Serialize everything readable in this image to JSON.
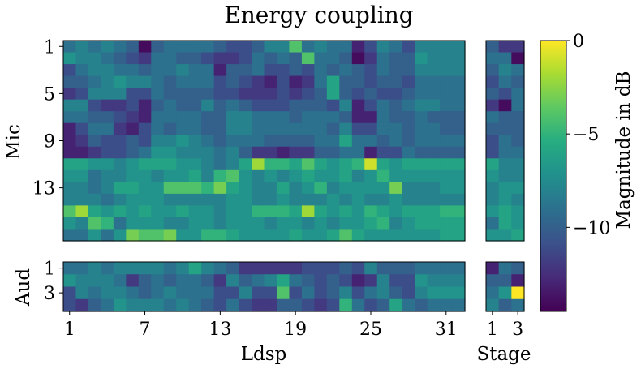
{
  "chart_data": {
    "type": "heatmap",
    "title": "Energy coupling",
    "colormap": "viridis",
    "colorbar": {
      "label": "Magnitude in dB",
      "range": [
        -14.5,
        0
      ],
      "ticks": [
        0,
        -5,
        -10
      ],
      "tick_labels": [
        "0",
        "−5",
        "−10"
      ]
    },
    "x_label_main": "Ldsp",
    "x_label_stage": "Stage",
    "y_label_mic": "Mic",
    "y_label_aud": "Aud",
    "ldsp_ticks": [
      1,
      7,
      13,
      19,
      25,
      31
    ],
    "stage_ticks": [
      1,
      3
    ],
    "mic_ticks": [
      1,
      5,
      9,
      13
    ],
    "aud_ticks": [
      1,
      3
    ],
    "mic_ldsp": [
      [
        -9,
        -8,
        -9,
        -8,
        -9,
        -10,
        -14,
        -10,
        -9,
        -9,
        -9,
        -9,
        -10,
        -11,
        -11,
        -10,
        -8,
        -8,
        -4,
        -9,
        -8,
        -9,
        -9,
        -13,
        -11,
        -8,
        -9,
        -11,
        -8,
        -8,
        -8,
        -8
      ],
      [
        -7,
        -8,
        -8,
        -9,
        -10,
        -11,
        -12,
        -9,
        -9,
        -10,
        -10,
        -11,
        -12,
        -12,
        -11,
        -9,
        -10,
        -9,
        -10,
        -4,
        -9,
        -9,
        -10,
        -14,
        -12,
        -9,
        -10,
        -10,
        -7,
        -8,
        -8,
        -8
      ],
      [
        -11,
        -9,
        -8,
        -8,
        -9,
        -9,
        -10,
        -9,
        -9,
        -8,
        -9,
        -9,
        -13,
        -10,
        -10,
        -9,
        -11,
        -11,
        -10,
        -11,
        -9,
        -10,
        -9,
        -10,
        -11,
        -9,
        -10,
        -10,
        -8,
        -8,
        -8,
        -8
      ],
      [
        -10,
        -10,
        -9,
        -8,
        -7,
        -8,
        -8,
        -9,
        -10,
        -9,
        -9,
        -9,
        -11,
        -10,
        -11,
        -12,
        -13,
        -11,
        -13,
        -12,
        -9,
        -6,
        -10,
        -10,
        -11,
        -10,
        -10,
        -11,
        -9,
        -9,
        -9,
        -9
      ],
      [
        -12,
        -11,
        -8,
        -8,
        -8,
        -11,
        -11,
        -9,
        -10,
        -10,
        -10,
        -10,
        -11,
        -11,
        -12,
        -12,
        -12,
        -11,
        -12,
        -11,
        -10,
        -6,
        -10,
        -11,
        -10,
        -11,
        -11,
        -10,
        -9,
        -9,
        -9,
        -9
      ],
      [
        -8,
        -8,
        -11,
        -12,
        -12,
        -11,
        -13,
        -10,
        -9,
        -10,
        -10,
        -8,
        -10,
        -9,
        -10,
        -11,
        -11,
        -11,
        -10,
        -10,
        -10,
        -11,
        -8,
        -13,
        -11,
        -9,
        -10,
        -9,
        -8,
        -8,
        -9,
        -9
      ],
      [
        -9,
        -9,
        -10,
        -10,
        -11,
        -12,
        -13,
        -9,
        -9,
        -9,
        -9,
        -10,
        -10,
        -8,
        -8,
        -9,
        -9,
        -9,
        -10,
        -9,
        -9,
        -9,
        -10,
        -13,
        -13,
        -9,
        -10,
        -10,
        -9,
        -10,
        -10,
        -10
      ],
      [
        -13,
        -11,
        -9,
        -9,
        -12,
        -13,
        -11,
        -9,
        -10,
        -9,
        -9,
        -10,
        -10,
        -8,
        -8,
        -9,
        -9,
        -9,
        -9,
        -9,
        -9,
        -10,
        -8,
        -11,
        -11,
        -9,
        -9,
        -10,
        -9,
        -9,
        -10,
        -10
      ],
      [
        -13,
        -12,
        -10,
        -11,
        -11,
        -10,
        -11,
        -8,
        -8,
        -7,
        -8,
        -9,
        -10,
        -9,
        -9,
        -9,
        -10,
        -10,
        -10,
        -10,
        -9,
        -9,
        -6,
        -9,
        -9,
        -10,
        -9,
        -10,
        -9,
        -9,
        -9,
        -9
      ],
      [
        -13,
        -13,
        -12,
        -11,
        -11,
        -10,
        -9,
        -7,
        -7,
        -8,
        -8,
        -8,
        -9,
        -8,
        -10,
        -12,
        -12,
        -13,
        -12,
        -12,
        -10,
        -10,
        -9,
        -9,
        -13,
        -11,
        -11,
        -9,
        -10,
        -10,
        -10,
        -10
      ],
      [
        -6,
        -6,
        -7,
        -7,
        -8,
        -7,
        -6,
        -6,
        -6,
        -7,
        -7,
        -8,
        -9,
        -8,
        -6,
        -2,
        -5,
        -5,
        -6,
        -4,
        -6,
        -7,
        -6,
        -5,
        -1,
        -6,
        -7,
        -6,
        -6,
        -6,
        -6,
        -6
      ],
      [
        -7,
        -7,
        -9,
        -8,
        -8,
        -7,
        -7,
        -8,
        -7,
        -7,
        -6,
        -8,
        -5,
        -4,
        -7,
        -8,
        -7,
        -8,
        -7,
        -6,
        -7,
        -7,
        -6,
        -8,
        -7,
        -5,
        -7,
        -7,
        -7,
        -7,
        -7,
        -7
      ],
      [
        -8,
        -8,
        -9,
        -8,
        -6,
        -6,
        -7,
        -7,
        -4,
        -4,
        -4,
        -5,
        -3,
        -6,
        -7,
        -8,
        -8,
        -6,
        -8,
        -7,
        -5,
        -8,
        -7,
        -7,
        -7,
        -7,
        -3,
        -8,
        -8,
        -8,
        -7,
        -7
      ],
      [
        -8,
        -8,
        -8,
        -9,
        -8,
        -7,
        -7,
        -7,
        -8,
        -8,
        -8,
        -8,
        -8,
        -7,
        -7,
        -8,
        -8,
        -7,
        -8,
        -8,
        -8,
        -7,
        -8,
        -7,
        -8,
        -8,
        -7,
        -8,
        -8,
        -8,
        -8,
        -8
      ],
      [
        -4,
        -2,
        -6,
        -7,
        -6,
        -7,
        -6,
        -7,
        -7,
        -6,
        -7,
        -7,
        -8,
        -7,
        -7,
        -5,
        -5,
        -5,
        -6,
        -2,
        -6,
        -7,
        -6,
        -7,
        -5,
        -6,
        -7,
        -6,
        -6,
        -6,
        -5,
        -5
      ],
      [
        -7,
        -8,
        -4,
        -5,
        -9,
        -7,
        -7,
        -7,
        -8,
        -8,
        -7,
        -7,
        -8,
        -7,
        -7,
        -7,
        -8,
        -7,
        -7,
        -8,
        -7,
        -8,
        -7,
        -7,
        -6,
        -5,
        -8,
        -7,
        -6,
        -6,
        -6,
        -6
      ],
      [
        -9,
        -9,
        -7,
        -9,
        -7,
        -3,
        -4,
        -4,
        -3,
        -7,
        -7,
        -5,
        -5,
        -6,
        -7,
        -7,
        -7,
        -7,
        -6,
        -7,
        -7,
        -6,
        -4,
        -6,
        -7,
        -7,
        -7,
        -7,
        -7,
        -7,
        -6,
        -6
      ]
    ],
    "mic_stage": [
      [
        -10,
        -12,
        -12
      ],
      [
        -9,
        -9,
        -14
      ],
      [
        -10,
        -8,
        -9
      ],
      [
        -11,
        -9,
        -10
      ],
      [
        -10,
        -11,
        -9
      ],
      [
        -12,
        -14,
        -9
      ],
      [
        -9,
        -10,
        -10
      ],
      [
        -10,
        -10,
        -10
      ],
      [
        -11,
        -9,
        -10
      ],
      [
        -11,
        -9,
        -9
      ],
      [
        -6,
        -8,
        -8
      ],
      [
        -7,
        -8,
        -8
      ],
      [
        -8,
        -7,
        -7
      ],
      [
        -8,
        -7,
        -8
      ],
      [
        -7,
        -6,
        -7
      ],
      [
        -9,
        -6,
        -7
      ],
      [
        -7,
        -7,
        -6
      ]
    ],
    "aud_ldsp": [
      [
        -9,
        -9,
        -8,
        -9,
        -8,
        -8,
        -8,
        -8,
        -9,
        -8,
        -6,
        -8,
        -9,
        -10,
        -12,
        -12,
        -12,
        -12,
        -12,
        -11,
        -11,
        -11,
        -10,
        -11,
        -8,
        -10,
        -10,
        -10,
        -9,
        -9,
        -9,
        -9
      ],
      [
        -7,
        -8,
        -8,
        -8,
        -9,
        -12,
        -10,
        -9,
        -10,
        -9,
        -9,
        -10,
        -12,
        -8,
        -10,
        -9,
        -8,
        -6,
        -9,
        -10,
        -11,
        -10,
        -11,
        -13,
        -12,
        -8,
        -11,
        -11,
        -7,
        -8,
        -8,
        -8
      ],
      [
        -11,
        -8,
        -9,
        -8,
        -8,
        -9,
        -10,
        -9,
        -8,
        -9,
        -9,
        -9,
        -11,
        -11,
        -8,
        -11,
        -11,
        -4,
        -11,
        -9,
        -11,
        -10,
        -8,
        -11,
        -9,
        -8,
        -10,
        -11,
        -8,
        -7,
        -7,
        -7
      ],
      [
        -11,
        -12,
        -10,
        -9,
        -7,
        -8,
        -8,
        -8,
        -9,
        -8,
        -9,
        -10,
        -11,
        -9,
        -11,
        -12,
        -12,
        -10,
        -10,
        -11,
        -12,
        -11,
        -5,
        -9,
        -11,
        -10,
        -6,
        -9,
        -10,
        -9,
        -9,
        -9
      ]
    ],
    "aud_stage": [
      [
        -13,
        -9,
        -10
      ],
      [
        -10,
        -10,
        -13
      ],
      [
        -9,
        -7,
        0
      ],
      [
        -8,
        -10,
        -9
      ]
    ]
  }
}
